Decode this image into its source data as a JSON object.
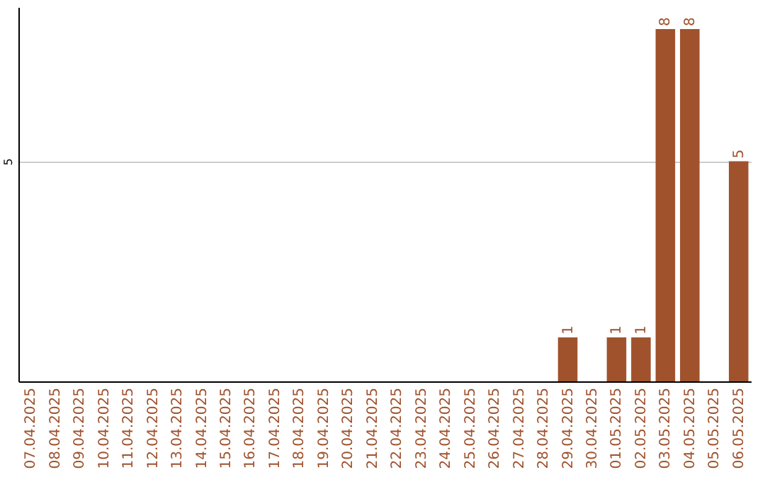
{
  "chart_data": {
    "type": "bar",
    "categories": [
      "07.04.2025",
      "08.04.2025",
      "09.04.2025",
      "10.04.2025",
      "11.04.2025",
      "12.04.2025",
      "13.04.2025",
      "14.04.2025",
      "15.04.2025",
      "16.04.2025",
      "17.04.2025",
      "18.04.2025",
      "19.04.2025",
      "20.04.2025",
      "21.04.2025",
      "22.04.2025",
      "23.04.2025",
      "24.04.2025",
      "25.04.2025",
      "26.04.2025",
      "27.04.2025",
      "28.04.2025",
      "29.04.2025",
      "30.04.2025",
      "01.05.2025",
      "02.05.2025",
      "03.05.2025",
      "04.05.2025",
      "05.05.2025",
      "06.05.2025"
    ],
    "values": [
      null,
      null,
      null,
      null,
      null,
      null,
      null,
      null,
      null,
      null,
      null,
      null,
      null,
      null,
      null,
      null,
      null,
      null,
      null,
      null,
      null,
      null,
      1,
      null,
      1,
      1,
      8,
      8,
      null,
      5
    ],
    "data_labels": true,
    "color": "#a0522d",
    "ylim": [
      0,
      8.5
    ],
    "yticks": [
      5
    ],
    "grid": "y"
  }
}
